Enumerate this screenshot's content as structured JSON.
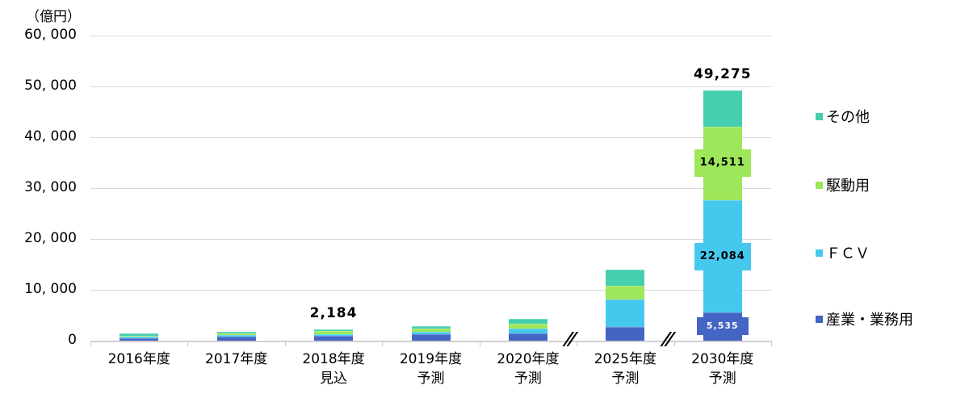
{
  "chart_data": {
    "type": "bar",
    "stacked": true,
    "title": "",
    "unit_label": "（億円）",
    "xlabel": "",
    "ylabel": "億円",
    "ylim": [
      0,
      60000
    ],
    "yticks": [
      "0",
      "10, 000",
      "20, 000",
      "30, 000",
      "40, 000",
      "50, 000",
      "60, 000"
    ],
    "grid": true,
    "legend_position": "right",
    "categories": [
      "2016年度",
      "2017年度",
      "2018年度 見込",
      "2019年度 予測",
      "2020年度 予測",
      "2025年度 予測",
      "2030年度 予測"
    ],
    "category_lines": [
      [
        "2016年度",
        ""
      ],
      [
        "2017年度",
        ""
      ],
      [
        "2018年度",
        "見込"
      ],
      [
        "2019年度",
        "予測"
      ],
      [
        "2020年度",
        "予測"
      ],
      [
        "2025年度",
        "予測"
      ],
      [
        "2030年度",
        "予測"
      ]
    ],
    "series": [
      {
        "name": "産業・業務用",
        "color": "#4565c4",
        "values": [
          500,
          800,
          900,
          1300,
          1500,
          2700,
          5535
        ]
      },
      {
        "name": "ＦＣＶ",
        "color": "#45c8ee",
        "values": [
          300,
          250,
          350,
          450,
          900,
          5400,
          22084
        ]
      },
      {
        "name": "駆動用",
        "color": "#9ee65a",
        "values": [
          150,
          350,
          600,
          600,
          900,
          2700,
          14511
        ]
      },
      {
        "name": "その他",
        "color": "#45ceb0",
        "values": [
          550,
          400,
          334,
          550,
          1000,
          3200,
          7145
        ]
      }
    ],
    "totals": [
      1500,
      1800,
      2184,
      2900,
      4300,
      14000,
      49275
    ],
    "annotations": [
      {
        "category": "2018年度 見込",
        "text": "2,184",
        "type": "total"
      },
      {
        "category": "2030年度 予測",
        "text": "49,275",
        "type": "total"
      },
      {
        "category": "2030年度 予測",
        "series": "駆動用",
        "text": "14,511"
      },
      {
        "category": "2030年度 予測",
        "series": "ＦＣＶ",
        "text": "22,084"
      },
      {
        "category": "2030年度 予測",
        "series": "産業・業務用",
        "text": "5,535"
      }
    ],
    "axis_breaks": [
      "2020年度 予測 | 2025年度 予測",
      "2025年度 予測 | 2030年度 予測"
    ]
  },
  "legend": [
    {
      "label": "その他",
      "color": "#45ceb0"
    },
    {
      "label": "駆動用",
      "color": "#9ee65a"
    },
    {
      "label": "ＦＣＶ",
      "color": "#45c8ee"
    },
    {
      "label": "産業・業務用",
      "color": "#4565c4"
    }
  ],
  "break_mark": "//"
}
